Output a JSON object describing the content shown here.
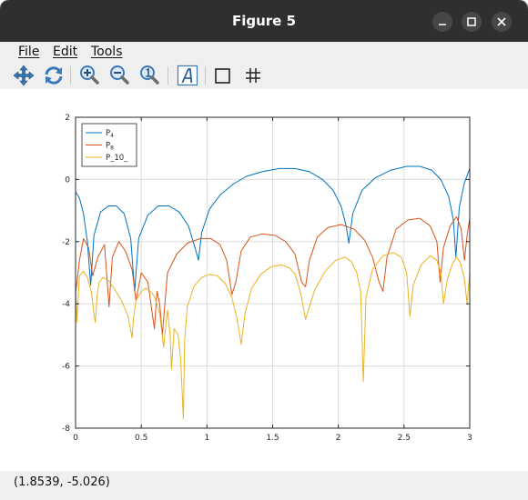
{
  "window": {
    "title": "Figure 5"
  },
  "menu": {
    "file": "File",
    "edit": "Edit",
    "tools": "Tools"
  },
  "toolbar": {
    "icons": [
      "pan-icon",
      "rotate-icon",
      "zoom-in-icon",
      "zoom-out-icon",
      "zoom-reset-icon",
      "text-icon",
      "box-icon",
      "grid-icon"
    ]
  },
  "colors": {
    "p4": "#0072bd",
    "p8": "#d95319",
    "p10": "#edb120"
  },
  "status": {
    "coordinates": "(1.8539, -5.026)"
  },
  "chart_data": {
    "type": "line",
    "title": "",
    "xlabel": "",
    "ylabel": "",
    "xlim": [
      0,
      3
    ],
    "ylim": [
      -8,
      2
    ],
    "xticks": [
      0,
      0.5,
      1,
      1.5,
      2,
      2.5,
      3
    ],
    "xtick_labels": [
      "0",
      "0.5",
      "1",
      "1.5",
      "2",
      "2.5",
      "3"
    ],
    "yticks": [
      -8,
      -6,
      -4,
      -2,
      0,
      2
    ],
    "ytick_labels": [
      "-8",
      "-6",
      "-4",
      "-2",
      "0",
      "2"
    ],
    "grid": true,
    "legend": "top-left",
    "series": [
      {
        "name": "P4",
        "label_main": "P",
        "label_sub": "4",
        "color": "#0072bd",
        "x": [
          0,
          0.03,
          0.06,
          0.09,
          0.115,
          0.14,
          0.19,
          0.25,
          0.31,
          0.37,
          0.42,
          0.45,
          0.48,
          0.55,
          0.63,
          0.71,
          0.79,
          0.86,
          0.91,
          0.935,
          0.96,
          1.02,
          1.1,
          1.2,
          1.3,
          1.42,
          1.55,
          1.67,
          1.78,
          1.88,
          1.96,
          2.02,
          2.06,
          2.08,
          2.11,
          2.18,
          2.28,
          2.4,
          2.52,
          2.62,
          2.71,
          2.78,
          2.84,
          2.875,
          2.895,
          2.92,
          2.96,
          3.0
        ],
        "y": [
          -0.4,
          -0.6,
          -1.1,
          -2.0,
          -3.4,
          -1.8,
          -1.05,
          -0.85,
          -0.85,
          -1.1,
          -1.9,
          -3.6,
          -1.9,
          -1.15,
          -0.85,
          -0.85,
          -1.05,
          -1.5,
          -2.2,
          -2.6,
          -1.7,
          -0.95,
          -0.5,
          -0.15,
          0.1,
          0.25,
          0.35,
          0.35,
          0.25,
          0.0,
          -0.35,
          -0.85,
          -1.5,
          -2.05,
          -1.1,
          -0.35,
          0.05,
          0.3,
          0.42,
          0.42,
          0.3,
          0.0,
          -0.55,
          -1.3,
          -2.5,
          -0.9,
          -0.1,
          0.35
        ]
      },
      {
        "name": "P8",
        "label_main": "P",
        "label_sub": "8",
        "color": "#d95319",
        "x": [
          0,
          0.03,
          0.06,
          0.1,
          0.13,
          0.17,
          0.22,
          0.255,
          0.28,
          0.33,
          0.38,
          0.43,
          0.46,
          0.5,
          0.55,
          0.6,
          0.62,
          0.64,
          0.66,
          0.7,
          0.77,
          0.85,
          0.95,
          1.03,
          1.1,
          1.15,
          1.19,
          1.22,
          1.26,
          1.33,
          1.42,
          1.52,
          1.6,
          1.67,
          1.72,
          1.75,
          1.78,
          1.84,
          1.92,
          2.02,
          2.12,
          2.2,
          2.26,
          2.31,
          2.34,
          2.37,
          2.44,
          2.53,
          2.62,
          2.7,
          2.75,
          2.775,
          2.8,
          2.85,
          2.9,
          2.935,
          2.96,
          2.98,
          3.0
        ],
        "y": [
          -3.7,
          -2.6,
          -1.9,
          -2.2,
          -3.1,
          -2.5,
          -2.1,
          -4.1,
          -2.5,
          -2.0,
          -2.3,
          -2.9,
          -3.9,
          -3.0,
          -3.3,
          -4.8,
          -3.6,
          -4.0,
          -5.0,
          -3.0,
          -2.4,
          -2.05,
          -1.9,
          -1.9,
          -2.1,
          -2.6,
          -3.7,
          -3.3,
          -2.3,
          -1.85,
          -1.75,
          -1.8,
          -2.0,
          -2.4,
          -3.3,
          -3.45,
          -2.6,
          -1.85,
          -1.55,
          -1.45,
          -1.6,
          -1.95,
          -2.5,
          -3.3,
          -3.6,
          -2.5,
          -1.6,
          -1.3,
          -1.25,
          -1.5,
          -2.0,
          -3.3,
          -2.2,
          -1.5,
          -1.2,
          -1.6,
          -2.6,
          -1.8,
          -1.25
        ]
      },
      {
        "name": "P_10_",
        "label_main": "P_10_",
        "label_sub": "",
        "color": "#edb120",
        "x": [
          0,
          0.01,
          0.03,
          0.06,
          0.09,
          0.12,
          0.14,
          0.15,
          0.165,
          0.18,
          0.21,
          0.25,
          0.3,
          0.35,
          0.4,
          0.43,
          0.44,
          0.46,
          0.5,
          0.53,
          0.56,
          0.6,
          0.64,
          0.67,
          0.7,
          0.72,
          0.73,
          0.75,
          0.78,
          0.8,
          0.82,
          0.83,
          0.85,
          0.9,
          0.96,
          1.02,
          1.08,
          1.14,
          1.19,
          1.23,
          1.26,
          1.29,
          1.34,
          1.41,
          1.49,
          1.57,
          1.63,
          1.67,
          1.7,
          1.72,
          1.75,
          1.82,
          1.9,
          1.98,
          2.05,
          2.1,
          2.14,
          2.17,
          2.19,
          2.21,
          2.26,
          2.34,
          2.42,
          2.48,
          2.52,
          2.545,
          2.57,
          2.63,
          2.7,
          2.75,
          2.78,
          2.8,
          2.83,
          2.87,
          2.9,
          2.93,
          2.96,
          2.98,
          3.0
        ],
        "y": [
          -3.3,
          -4.6,
          -3.1,
          -2.95,
          -3.15,
          -3.6,
          -4.3,
          -4.6,
          -3.7,
          -3.3,
          -3.15,
          -3.25,
          -3.55,
          -3.9,
          -4.4,
          -5.1,
          -4.5,
          -3.9,
          -3.6,
          -3.5,
          -3.55,
          -3.75,
          -4.3,
          -5.4,
          -4.2,
          -5.0,
          -6.1,
          -4.8,
          -5.0,
          -5.8,
          -7.7,
          -5.2,
          -4.1,
          -3.45,
          -3.15,
          -3.05,
          -3.1,
          -3.35,
          -3.8,
          -4.5,
          -5.3,
          -4.3,
          -3.5,
          -3.05,
          -2.8,
          -2.75,
          -2.85,
          -3.05,
          -3.45,
          -3.8,
          -4.5,
          -3.55,
          -2.95,
          -2.6,
          -2.5,
          -2.65,
          -3.0,
          -3.6,
          -6.5,
          -3.8,
          -2.9,
          -2.45,
          -2.35,
          -2.5,
          -3.0,
          -4.4,
          -3.4,
          -2.75,
          -2.45,
          -2.6,
          -3.0,
          -4.0,
          -3.2,
          -2.7,
          -2.5,
          -2.7,
          -3.2,
          -4.0,
          -3.0
        ]
      }
    ]
  }
}
